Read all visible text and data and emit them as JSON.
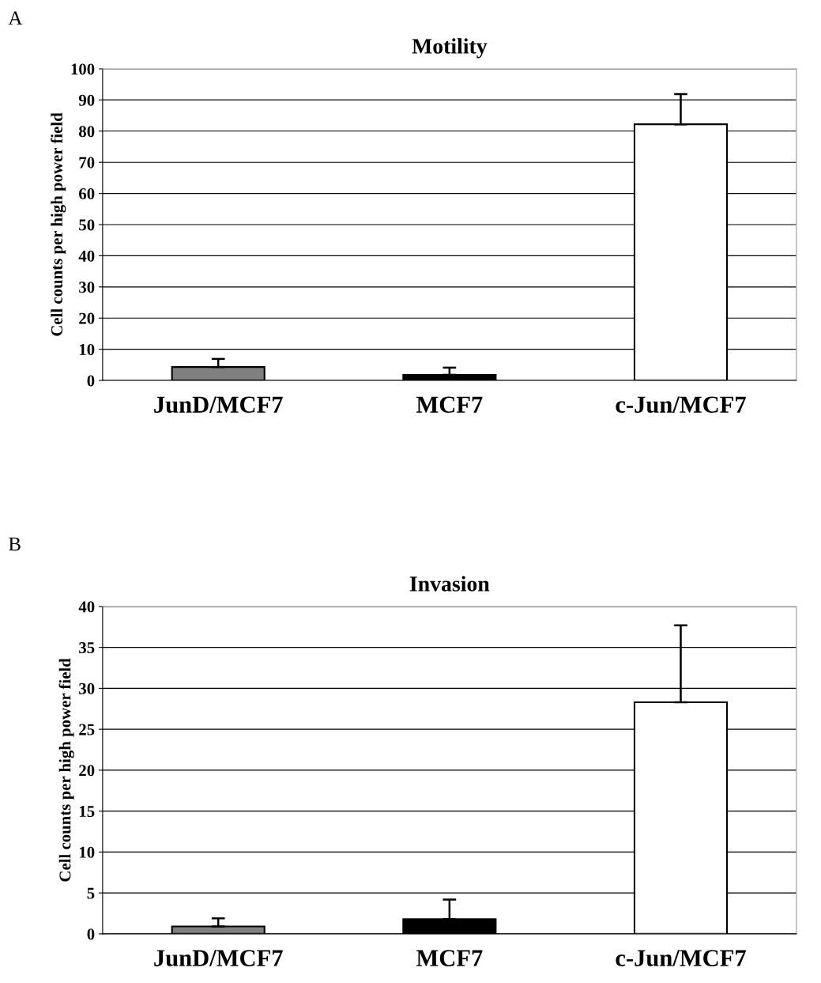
{
  "chart_data": [
    {
      "type": "bar",
      "title": "Motility",
      "ylabel": "Cell counts per high power field",
      "annotations": [
        "A"
      ],
      "categories": [
        "JunD/MCF7",
        "MCF7",
        "c-Jun/MCF7"
      ],
      "values": [
        4.3,
        1.8,
        82.2
      ],
      "errors": [
        [
          4.3,
          6.9
        ],
        [
          1.8,
          4.1
        ],
        [
          82.2,
          91.9
        ]
      ],
      "colors": [
        "#808080",
        "#000000",
        "#ffffff"
      ],
      "ylim": [
        0,
        100
      ],
      "yticks": [
        0,
        10,
        20,
        30,
        40,
        50,
        60,
        70,
        80,
        90,
        100
      ],
      "grid": "y"
    },
    {
      "type": "bar",
      "title": "Invasion",
      "ylabel": "Cell counts per high power field",
      "annotations": [
        "B"
      ],
      "categories": [
        "JunD/MCF7",
        "MCF7",
        "c-Jun/MCF7"
      ],
      "values": [
        0.9,
        1.8,
        28.3
      ],
      "errors": [
        [
          0.9,
          1.9
        ],
        [
          1.8,
          4.2
        ],
        [
          28.3,
          37.7
        ]
      ],
      "colors": [
        "#808080",
        "#000000",
        "#ffffff"
      ],
      "ylim": [
        0,
        40
      ],
      "yticks": [
        0,
        5,
        10,
        15,
        20,
        25,
        30,
        35,
        40
      ],
      "grid": "y"
    }
  ]
}
